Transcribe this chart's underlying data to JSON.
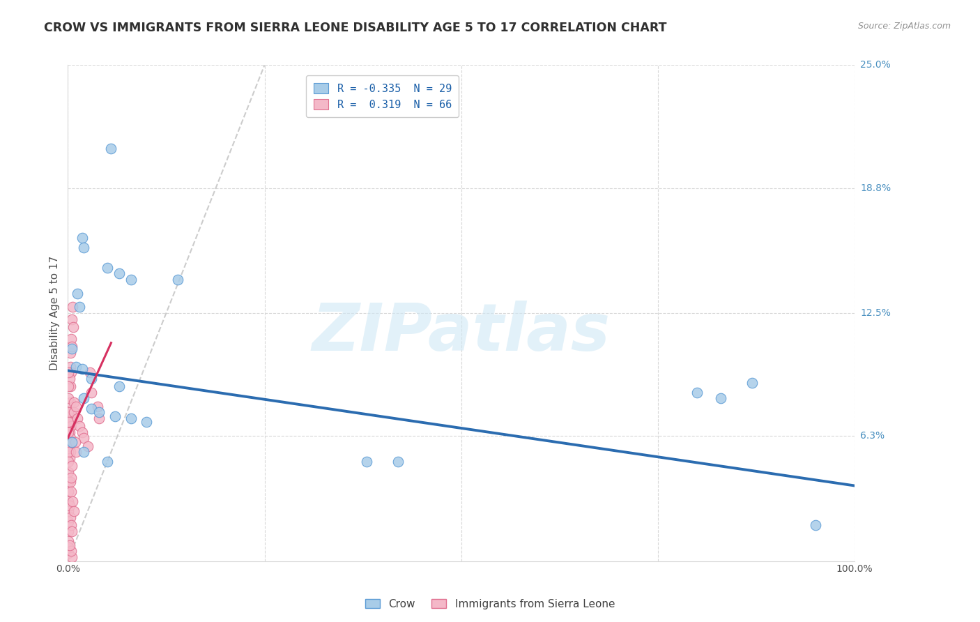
{
  "title": "CROW VS IMMIGRANTS FROM SIERRA LEONE DISABILITY AGE 5 TO 17 CORRELATION CHART",
  "source": "Source: ZipAtlas.com",
  "ylabel": "Disability Age 5 to 17",
  "xlim": [
    0,
    1.0
  ],
  "ylim": [
    0,
    0.25
  ],
  "xticklabels_pos": [
    0.0,
    1.0
  ],
  "xticklabels": [
    "0.0%",
    "100.0%"
  ],
  "ytick_positions_right": [
    0.25,
    0.188,
    0.125,
    0.063
  ],
  "ytick_labels_right": [
    "25.0%",
    "18.8%",
    "12.5%",
    "6.3%"
  ],
  "crow_color": "#a8cce8",
  "crow_edge_color": "#5b9bd5",
  "sierra_leone_color": "#f4b8c8",
  "sierra_leone_edge_color": "#e07090",
  "trend_blue_color": "#2b6cb0",
  "trend_pink_color": "#d63060",
  "watermark_text": "ZIPatlas",
  "crow_scatter": [
    [
      0.055,
      0.208
    ],
    [
      0.018,
      0.163
    ],
    [
      0.02,
      0.158
    ],
    [
      0.05,
      0.148
    ],
    [
      0.065,
      0.145
    ],
    [
      0.012,
      0.135
    ],
    [
      0.015,
      0.128
    ],
    [
      0.08,
      0.142
    ],
    [
      0.14,
      0.142
    ],
    [
      0.005,
      0.107
    ],
    [
      0.01,
      0.098
    ],
    [
      0.018,
      0.097
    ],
    [
      0.03,
      0.092
    ],
    [
      0.065,
      0.088
    ],
    [
      0.02,
      0.082
    ],
    [
      0.03,
      0.077
    ],
    [
      0.04,
      0.075
    ],
    [
      0.06,
      0.073
    ],
    [
      0.08,
      0.072
    ],
    [
      0.1,
      0.07
    ],
    [
      0.005,
      0.06
    ],
    [
      0.02,
      0.055
    ],
    [
      0.05,
      0.05
    ],
    [
      0.38,
      0.05
    ],
    [
      0.42,
      0.05
    ],
    [
      0.8,
      0.085
    ],
    [
      0.83,
      0.082
    ],
    [
      0.87,
      0.09
    ],
    [
      0.95,
      0.018
    ]
  ],
  "sierra_leone_scatter": [
    [
      0.003,
      0.105
    ],
    [
      0.004,
      0.112
    ],
    [
      0.003,
      0.098
    ],
    [
      0.005,
      0.122
    ],
    [
      0.006,
      0.128
    ],
    [
      0.007,
      0.118
    ],
    [
      0.005,
      0.108
    ],
    [
      0.004,
      0.095
    ],
    [
      0.003,
      0.088
    ],
    [
      0.002,
      0.092
    ],
    [
      0.003,
      0.08
    ],
    [
      0.004,
      0.075
    ],
    [
      0.005,
      0.072
    ],
    [
      0.003,
      0.07
    ],
    [
      0.004,
      0.068
    ],
    [
      0.002,
      0.065
    ],
    [
      0.003,
      0.062
    ],
    [
      0.002,
      0.058
    ],
    [
      0.003,
      0.055
    ],
    [
      0.002,
      0.052
    ],
    [
      0.001,
      0.095
    ],
    [
      0.001,
      0.088
    ],
    [
      0.001,
      0.082
    ],
    [
      0.001,
      0.075
    ],
    [
      0.001,
      0.07
    ],
    [
      0.001,
      0.065
    ],
    [
      0.001,
      0.06
    ],
    [
      0.001,
      0.055
    ],
    [
      0.001,
      0.05
    ],
    [
      0.001,
      0.045
    ],
    [
      0.001,
      0.04
    ],
    [
      0.001,
      0.035
    ],
    [
      0.001,
      0.03
    ],
    [
      0.001,
      0.025
    ],
    [
      0.001,
      0.02
    ],
    [
      0.001,
      0.015
    ],
    [
      0.001,
      0.01
    ],
    [
      0.001,
      0.007
    ],
    [
      0.001,
      0.004
    ],
    [
      0.002,
      0.028
    ],
    [
      0.003,
      0.022
    ],
    [
      0.004,
      0.018
    ],
    [
      0.005,
      0.015
    ],
    [
      0.008,
      0.08
    ],
    [
      0.008,
      0.075
    ],
    [
      0.01,
      0.078
    ],
    [
      0.012,
      0.072
    ],
    [
      0.015,
      0.068
    ],
    [
      0.018,
      0.065
    ],
    [
      0.02,
      0.062
    ],
    [
      0.025,
      0.058
    ],
    [
      0.028,
      0.095
    ],
    [
      0.03,
      0.085
    ],
    [
      0.038,
      0.078
    ],
    [
      0.04,
      0.072
    ],
    [
      0.003,
      0.04
    ],
    [
      0.004,
      0.035
    ],
    [
      0.006,
      0.03
    ],
    [
      0.008,
      0.025
    ],
    [
      0.005,
      0.048
    ],
    [
      0.004,
      0.042
    ],
    [
      0.009,
      0.06
    ],
    [
      0.01,
      0.055
    ],
    [
      0.005,
      0.002
    ],
    [
      0.004,
      0.005
    ],
    [
      0.002,
      0.008
    ]
  ],
  "blue_trend_x": [
    0.0,
    1.0
  ],
  "blue_trend_y": [
    0.096,
    0.038
  ],
  "pink_trend_x": [
    0.0,
    0.055
  ],
  "pink_trend_y": [
    0.062,
    0.11
  ],
  "ref_line_x": [
    0.0,
    0.25
  ],
  "ref_line_y": [
    0.0,
    0.25
  ],
  "grid_color": "#d8d8d8",
  "background_color": "#ffffff",
  "title_color": "#303030",
  "right_tick_color": "#4a90c0",
  "legend_label1": "R = -0.335  N = 29",
  "legend_label2": "R =  0.319  N = 66",
  "bottom_legend1": "Crow",
  "bottom_legend2": "Immigrants from Sierra Leone"
}
